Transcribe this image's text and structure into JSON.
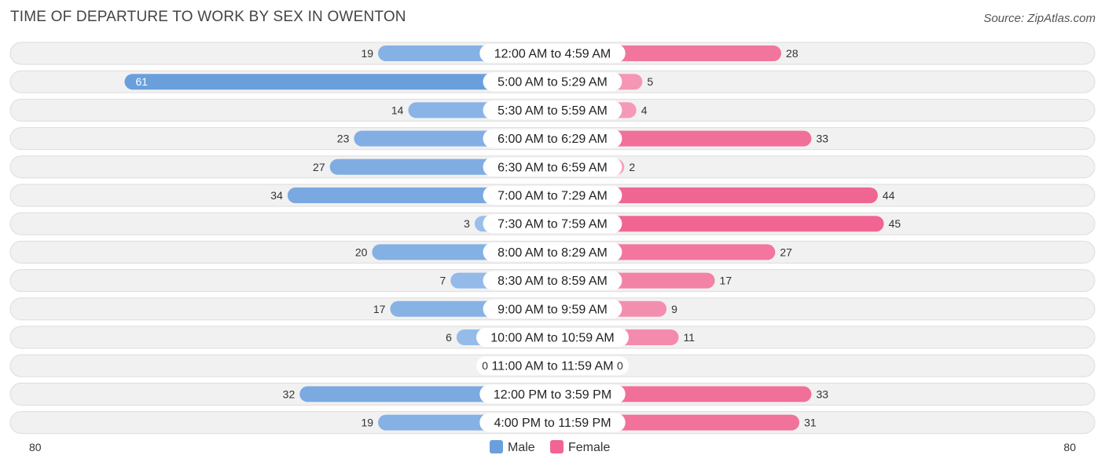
{
  "header": {
    "title": "TIME OF DEPARTURE TO WORK BY SEX IN OWENTON",
    "source": "Source: ZipAtlas.com"
  },
  "colors": {
    "male_strong": "#6a9fdc",
    "male_light": "#a8c8ee",
    "female_strong": "#f06592",
    "female_light": "#f8afc6"
  },
  "chart_data": {
    "type": "bar",
    "orientation": "horizontal-diverging",
    "title": "TIME OF DEPARTURE TO WORK BY SEX IN OWENTON",
    "categories": [
      "12:00 AM to 4:59 AM",
      "5:00 AM to 5:29 AM",
      "5:30 AM to 5:59 AM",
      "6:00 AM to 6:29 AM",
      "6:30 AM to 6:59 AM",
      "7:00 AM to 7:29 AM",
      "7:30 AM to 7:59 AM",
      "8:00 AM to 8:29 AM",
      "8:30 AM to 8:59 AM",
      "9:00 AM to 9:59 AM",
      "10:00 AM to 10:59 AM",
      "11:00 AM to 11:59 AM",
      "12:00 PM to 3:59 PM",
      "4:00 PM to 11:59 PM"
    ],
    "series": [
      {
        "name": "Male",
        "values": [
          19,
          61,
          14,
          23,
          27,
          34,
          3,
          20,
          7,
          17,
          6,
          0,
          32,
          19
        ]
      },
      {
        "name": "Female",
        "values": [
          28,
          5,
          4,
          33,
          2,
          44,
          45,
          27,
          17,
          9,
          11,
          0,
          33,
          31
        ]
      }
    ],
    "axis": {
      "left_label": "80",
      "right_label": "80",
      "max": 80
    },
    "legend": {
      "position": "bottom-center",
      "entries": [
        "Male",
        "Female"
      ]
    }
  }
}
